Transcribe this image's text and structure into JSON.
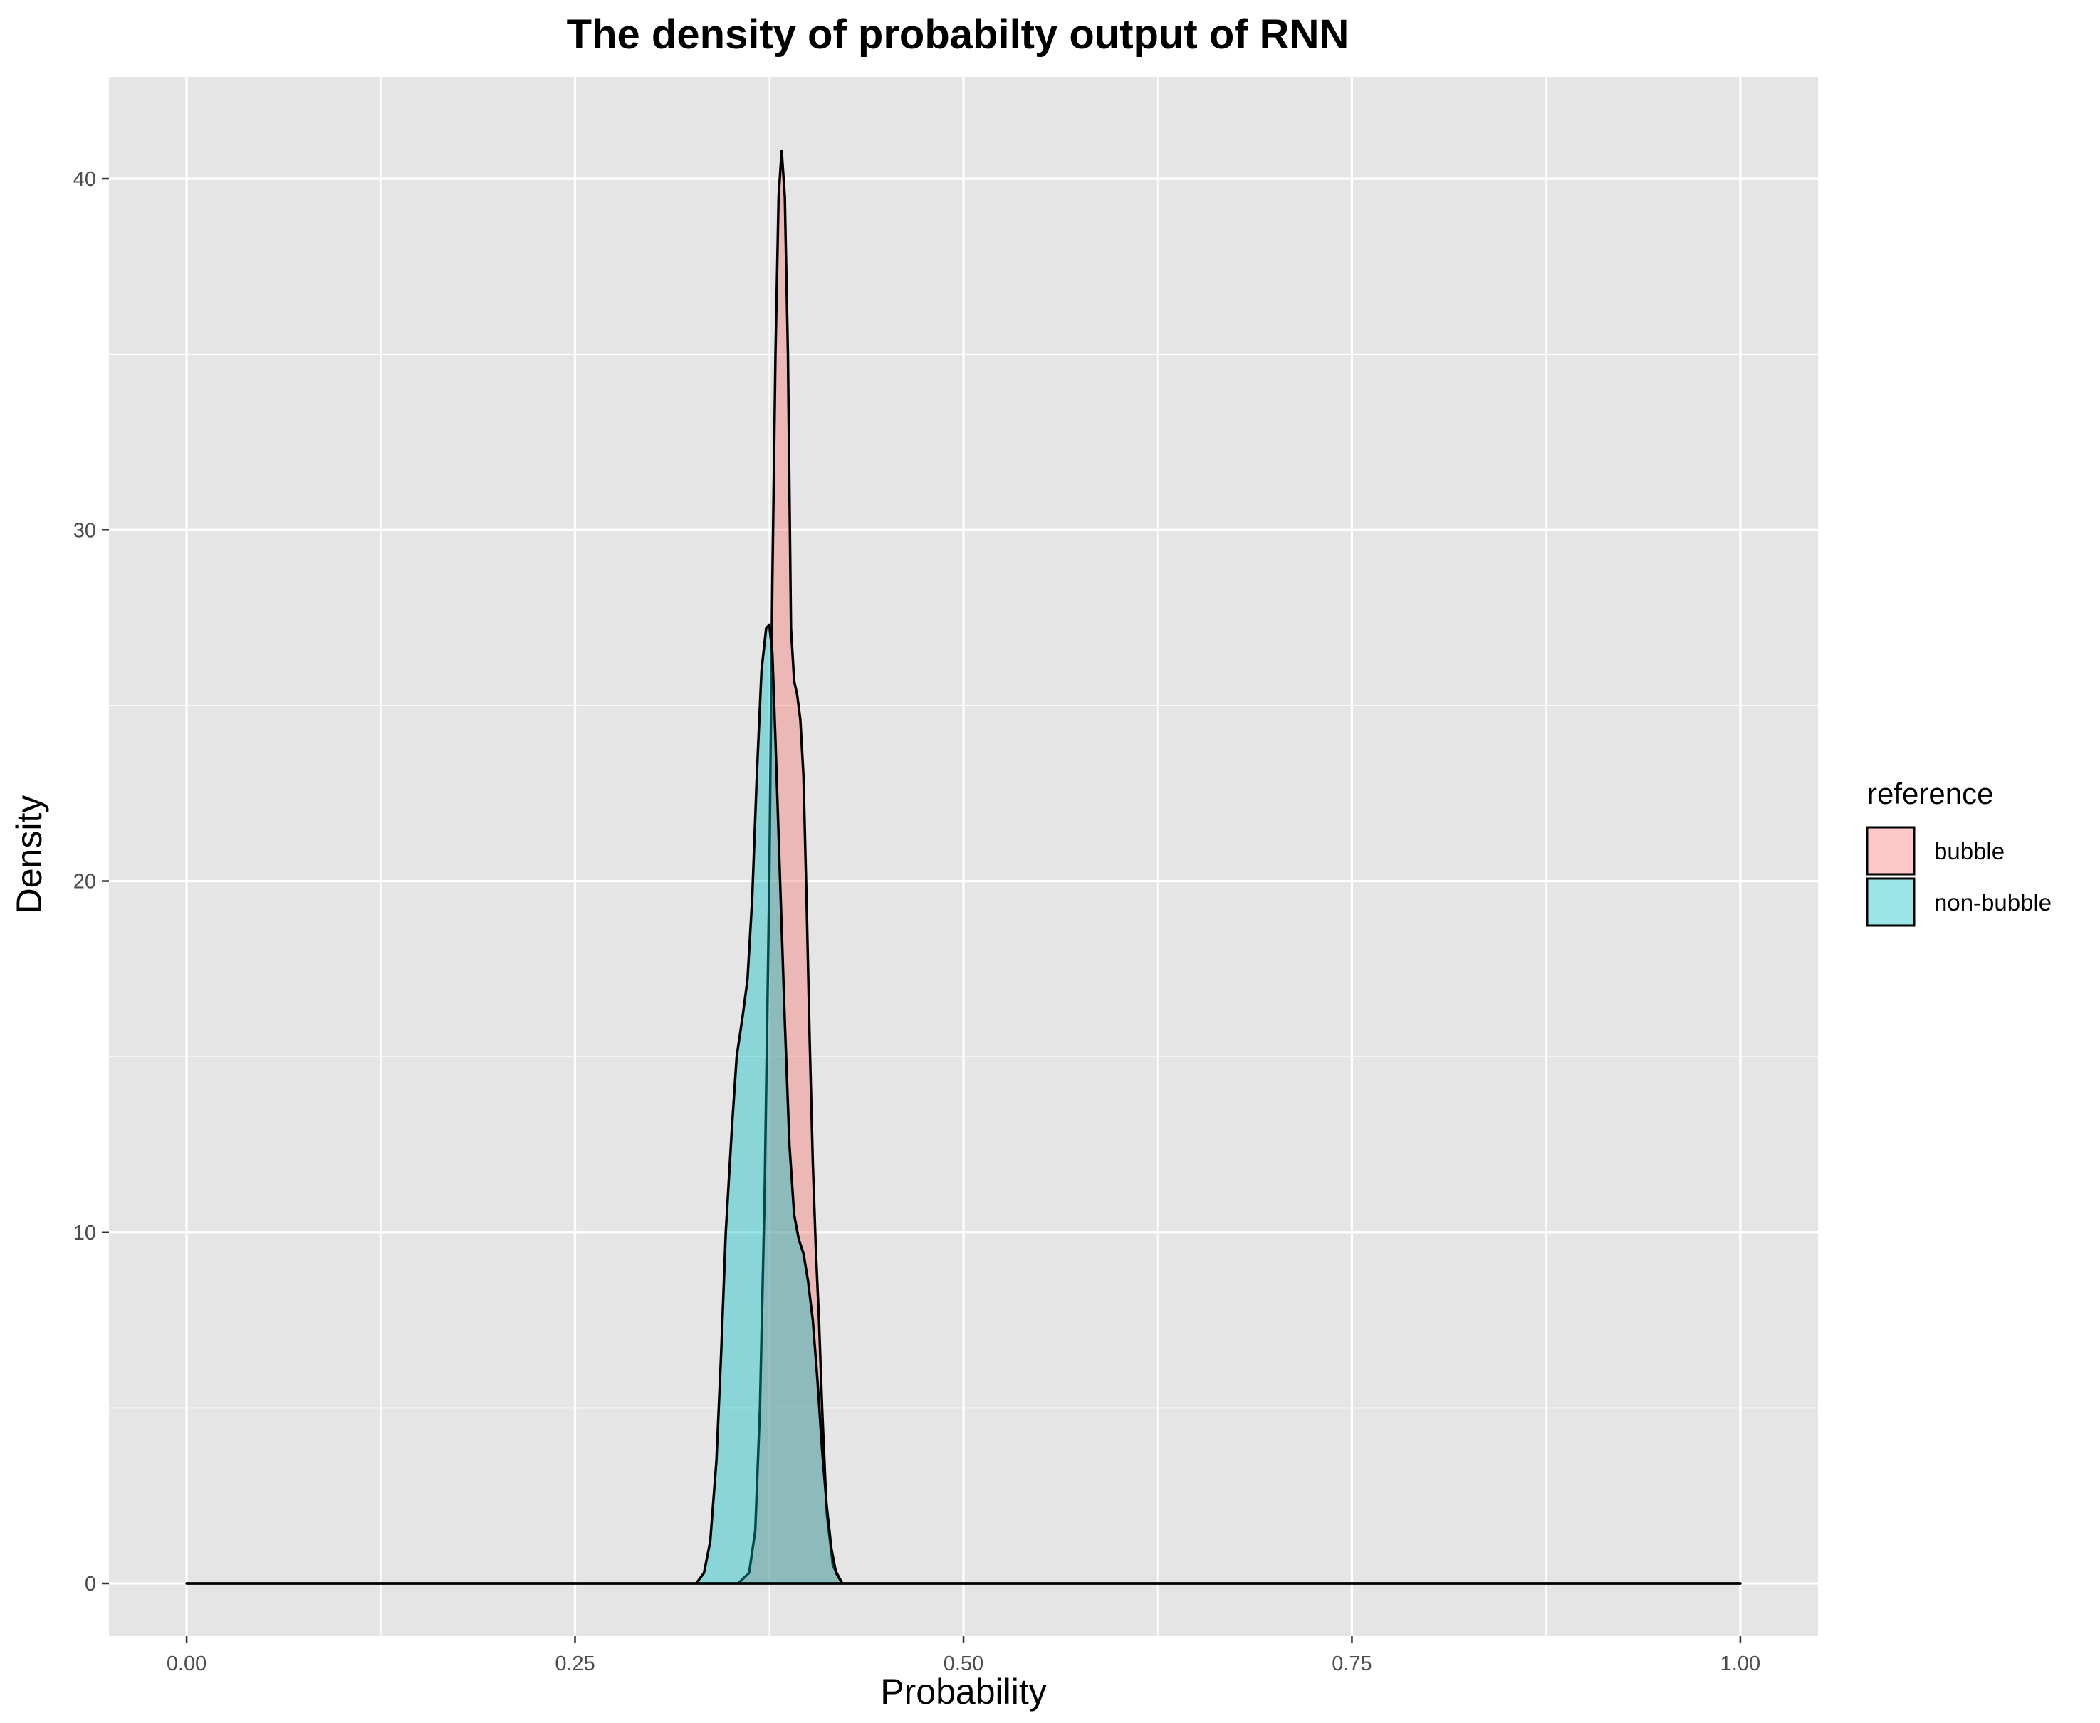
{
  "chart_data": {
    "type": "area",
    "title": "The density of probabilty output of RNN",
    "xlabel": "Probability",
    "ylabel": "Density",
    "xlim": [
      -0.05,
      1.05
    ],
    "ylim": [
      -1.5,
      42.9
    ],
    "x_ticks": [
      0,
      0.25,
      0.5,
      0.75,
      1
    ],
    "x_tick_labels": [
      "0.00",
      "0.25",
      "0.50",
      "0.75",
      "1.00"
    ],
    "y_ticks": [
      0,
      10,
      20,
      30,
      40
    ],
    "y_tick_labels": [
      "0",
      "10",
      "20",
      "30",
      "40"
    ],
    "grid": true,
    "legend": {
      "title": "reference",
      "position": "right"
    },
    "series": [
      {
        "name": "bubble",
        "fill": "#F8766D",
        "x": [
          0,
          0.355,
          0.362,
          0.366,
          0.369,
          0.372,
          0.375,
          0.377,
          0.379,
          0.381,
          0.383,
          0.385,
          0.387,
          0.389,
          0.391,
          0.393,
          0.395,
          0.397,
          0.399,
          0.401,
          0.403,
          0.405,
          0.407,
          0.409,
          0.412,
          0.416,
          0.422,
          1
        ],
        "y": [
          0,
          0,
          0.3,
          1.5,
          5,
          11,
          20,
          28.5,
          35,
          39.5,
          40.8,
          39.5,
          35,
          27.2,
          25.7,
          25.3,
          24.6,
          23,
          19.5,
          15.5,
          12,
          9.5,
          7.5,
          5,
          2,
          0.5,
          0,
          0
        ]
      },
      {
        "name": "non-bubble",
        "fill": "#00BFC4",
        "x": [
          0,
          0.328,
          0.333,
          0.337,
          0.341,
          0.344,
          0.347,
          0.351,
          0.354,
          0.358,
          0.361,
          0.364,
          0.367,
          0.37,
          0.373,
          0.375,
          0.377,
          0.379,
          0.382,
          0.385,
          0.388,
          0.391,
          0.394,
          0.397,
          0.4,
          0.403,
          0.406,
          0.409,
          0.412,
          0.415,
          0.418,
          0.422,
          1
        ],
        "y": [
          0,
          0,
          0.3,
          1.2,
          3.5,
          6.5,
          10,
          13,
          15,
          16.2,
          17.2,
          19.5,
          23,
          26,
          27.2,
          27.3,
          26.5,
          24,
          20,
          16,
          12.5,
          10.5,
          9.8,
          9.4,
          8.6,
          7.5,
          5.8,
          3.8,
          2.2,
          1,
          0.3,
          0,
          0
        ]
      }
    ]
  }
}
